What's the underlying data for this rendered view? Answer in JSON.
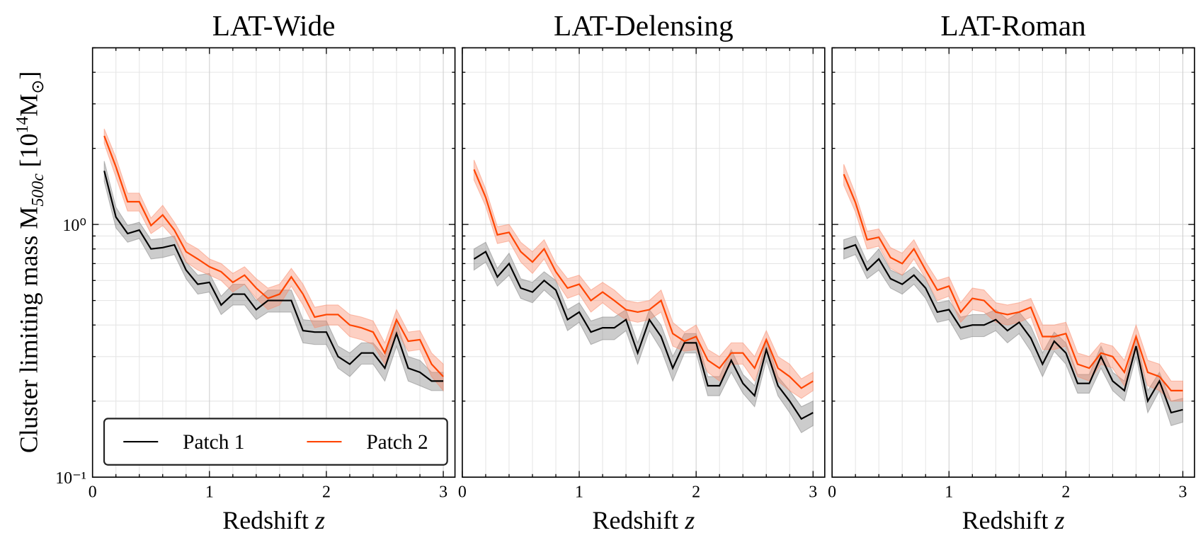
{
  "chart_data": [
    {
      "type": "line",
      "title": "LAT-Wide",
      "xlabel": {
        "text": "Redshift",
        "var": "z"
      },
      "ylabel": {
        "text": "Cluster limiting mass M",
        "sub": "500c",
        "open": "[10",
        "exp": "14",
        "unit": "M",
        "unit_sub": "⊙",
        "close": "]"
      },
      "log_y": true,
      "grid": true,
      "legend": "lower left",
      "ytick_labels": true,
      "xlim": [
        0,
        3.1
      ],
      "xticks": [
        0,
        1,
        2,
        3
      ],
      "xminor": [
        0.2,
        0.4,
        0.6,
        0.8,
        1.2,
        1.4,
        1.6,
        1.8,
        2.2,
        2.4,
        2.6,
        2.8
      ],
      "ylim": [
        0.1,
        5
      ],
      "yticks": [
        {
          "value": 0.1,
          "label": "10⁻¹"
        },
        {
          "value": 1,
          "label": "10⁰"
        }
      ],
      "yminor": [
        0.2,
        0.3,
        0.4,
        0.5,
        0.6,
        0.7,
        0.8,
        0.9,
        2,
        3,
        4,
        5
      ],
      "x": [
        0.1,
        0.2,
        0.3,
        0.4,
        0.5,
        0.6,
        0.7,
        0.8,
        0.9,
        1.0,
        1.1,
        1.2,
        1.3,
        1.4,
        1.5,
        1.6,
        1.7,
        1.8,
        1.9,
        2.0,
        2.1,
        2.2,
        2.3,
        2.4,
        2.5,
        2.6,
        2.7,
        2.8,
        2.9,
        3.0
      ],
      "series": [
        {
          "name": "Patch 1",
          "color": "#000000",
          "band_color": "#808080",
          "values": [
            1.63,
            1.07,
            0.92,
            0.95,
            0.8,
            0.81,
            0.83,
            0.66,
            0.58,
            0.59,
            0.48,
            0.53,
            0.53,
            0.46,
            0.5,
            0.5,
            0.5,
            0.38,
            0.375,
            0.375,
            0.3,
            0.28,
            0.31,
            0.31,
            0.27,
            0.37,
            0.27,
            0.26,
            0.24,
            0.24
          ],
          "errors": [
            0.15,
            0.1,
            0.07,
            0.07,
            0.07,
            0.07,
            0.07,
            0.05,
            0.05,
            0.05,
            0.04,
            0.05,
            0.05,
            0.04,
            0.05,
            0.05,
            0.05,
            0.04,
            0.04,
            0.04,
            0.03,
            0.03,
            0.03,
            0.03,
            0.03,
            0.04,
            0.03,
            0.03,
            0.02,
            0.02
          ]
        },
        {
          "name": "Patch 2",
          "color": "#ff4500",
          "band_color": "#f98a6a",
          "values": [
            2.24,
            1.69,
            1.23,
            1.23,
            0.99,
            1.09,
            0.95,
            0.78,
            0.73,
            0.68,
            0.65,
            0.59,
            0.63,
            0.56,
            0.51,
            0.53,
            0.62,
            0.53,
            0.43,
            0.44,
            0.44,
            0.4,
            0.39,
            0.375,
            0.31,
            0.42,
            0.345,
            0.35,
            0.28,
            0.25
          ],
          "errors": [
            0.15,
            0.15,
            0.1,
            0.1,
            0.07,
            0.1,
            0.07,
            0.07,
            0.07,
            0.05,
            0.05,
            0.05,
            0.05,
            0.05,
            0.05,
            0.05,
            0.05,
            0.05,
            0.04,
            0.04,
            0.04,
            0.04,
            0.04,
            0.04,
            0.03,
            0.04,
            0.03,
            0.03,
            0.03,
            0.03
          ]
        }
      ]
    },
    {
      "type": "line",
      "title": "LAT-Delensing",
      "xlabel": {
        "text": "Redshift",
        "var": "z"
      },
      "log_y": true,
      "grid": true,
      "ytick_labels": false,
      "xlim": [
        0,
        3.1
      ],
      "xticks": [
        0,
        1,
        2,
        3
      ],
      "xminor": [
        0.2,
        0.4,
        0.6,
        0.8,
        1.2,
        1.4,
        1.6,
        1.8,
        2.2,
        2.4,
        2.6,
        2.8
      ],
      "ylim": [
        0.1,
        5
      ],
      "yticks": [
        0.1,
        1
      ],
      "yminor": [
        0.2,
        0.3,
        0.4,
        0.5,
        0.6,
        0.7,
        0.8,
        0.9,
        2,
        3,
        4,
        5
      ],
      "x": [
        0.1,
        0.2,
        0.3,
        0.4,
        0.5,
        0.6,
        0.7,
        0.8,
        0.9,
        1.0,
        1.1,
        1.2,
        1.3,
        1.4,
        1.5,
        1.6,
        1.7,
        1.8,
        1.9,
        2.0,
        2.1,
        2.2,
        2.3,
        2.4,
        2.5,
        2.6,
        2.7,
        2.8,
        2.9,
        3.0
      ],
      "series": [
        {
          "color": "#000000",
          "band_color": "#808080",
          "values": [
            0.73,
            0.78,
            0.62,
            0.7,
            0.56,
            0.54,
            0.6,
            0.55,
            0.42,
            0.45,
            0.375,
            0.39,
            0.39,
            0.42,
            0.31,
            0.42,
            0.36,
            0.27,
            0.34,
            0.34,
            0.23,
            0.23,
            0.29,
            0.235,
            0.21,
            0.32,
            0.23,
            0.2,
            0.17,
            0.18
          ],
          "errors": [
            0.07,
            0.07,
            0.05,
            0.07,
            0.05,
            0.05,
            0.05,
            0.05,
            0.04,
            0.04,
            0.04,
            0.04,
            0.04,
            0.04,
            0.03,
            0.04,
            0.04,
            0.03,
            0.03,
            0.03,
            0.02,
            0.02,
            0.03,
            0.02,
            0.02,
            0.03,
            0.02,
            0.02,
            0.02,
            0.02
          ]
        },
        {
          "color": "#ff4500",
          "band_color": "#f98a6a",
          "values": [
            1.65,
            1.28,
            0.91,
            0.93,
            0.78,
            0.71,
            0.8,
            0.65,
            0.56,
            0.58,
            0.5,
            0.54,
            0.5,
            0.46,
            0.45,
            0.46,
            0.5,
            0.37,
            0.345,
            0.36,
            0.29,
            0.27,
            0.31,
            0.31,
            0.27,
            0.35,
            0.27,
            0.25,
            0.225,
            0.24
          ],
          "errors": [
            0.15,
            0.1,
            0.07,
            0.07,
            0.07,
            0.07,
            0.07,
            0.05,
            0.05,
            0.05,
            0.05,
            0.05,
            0.05,
            0.04,
            0.04,
            0.04,
            0.05,
            0.04,
            0.03,
            0.04,
            0.03,
            0.03,
            0.03,
            0.03,
            0.03,
            0.03,
            0.03,
            0.03,
            0.02,
            0.02
          ]
        }
      ]
    },
    {
      "type": "line",
      "title": "LAT-Roman",
      "xlabel": {
        "text": "Redshift",
        "var": "z"
      },
      "log_y": true,
      "grid": true,
      "ytick_labels": false,
      "xlim": [
        0,
        3.1
      ],
      "xticks": [
        0,
        1,
        2,
        3
      ],
      "xminor": [
        0.2,
        0.4,
        0.6,
        0.8,
        1.2,
        1.4,
        1.6,
        1.8,
        2.2,
        2.4,
        2.6,
        2.8
      ],
      "ylim": [
        0.1,
        5
      ],
      "yticks": [
        0.1,
        1
      ],
      "yminor": [
        0.2,
        0.3,
        0.4,
        0.5,
        0.6,
        0.7,
        0.8,
        0.9,
        2,
        3,
        4,
        5
      ],
      "x": [
        0.1,
        0.2,
        0.3,
        0.4,
        0.5,
        0.6,
        0.7,
        0.8,
        0.9,
        1.0,
        1.1,
        1.2,
        1.3,
        1.4,
        1.5,
        1.6,
        1.7,
        1.8,
        1.9,
        2.0,
        2.1,
        2.2,
        2.3,
        2.4,
        2.5,
        2.6,
        2.7,
        2.8,
        2.9,
        3.0
      ],
      "series": [
        {
          "color": "#000000",
          "band_color": "#808080",
          "values": [
            0.8,
            0.83,
            0.66,
            0.73,
            0.61,
            0.58,
            0.63,
            0.56,
            0.45,
            0.46,
            0.39,
            0.4,
            0.4,
            0.42,
            0.38,
            0.41,
            0.355,
            0.28,
            0.345,
            0.31,
            0.235,
            0.235,
            0.3,
            0.24,
            0.22,
            0.33,
            0.2,
            0.24,
            0.18,
            0.185
          ],
          "errors": [
            0.07,
            0.07,
            0.05,
            0.07,
            0.05,
            0.05,
            0.05,
            0.05,
            0.04,
            0.04,
            0.04,
            0.04,
            0.04,
            0.04,
            0.04,
            0.04,
            0.04,
            0.03,
            0.03,
            0.03,
            0.02,
            0.02,
            0.03,
            0.02,
            0.02,
            0.03,
            0.02,
            0.02,
            0.02,
            0.02
          ]
        },
        {
          "color": "#ff4500",
          "band_color": "#f98a6a",
          "values": [
            1.58,
            1.22,
            0.87,
            0.89,
            0.74,
            0.7,
            0.8,
            0.66,
            0.55,
            0.57,
            0.45,
            0.51,
            0.5,
            0.45,
            0.44,
            0.45,
            0.47,
            0.36,
            0.36,
            0.37,
            0.28,
            0.27,
            0.31,
            0.3,
            0.26,
            0.36,
            0.26,
            0.25,
            0.22,
            0.22
          ],
          "errors": [
            0.15,
            0.1,
            0.07,
            0.07,
            0.07,
            0.07,
            0.07,
            0.05,
            0.05,
            0.05,
            0.04,
            0.05,
            0.05,
            0.04,
            0.04,
            0.04,
            0.04,
            0.04,
            0.04,
            0.04,
            0.03,
            0.03,
            0.03,
            0.03,
            0.03,
            0.04,
            0.03,
            0.03,
            0.02,
            0.02
          ]
        }
      ]
    }
  ]
}
